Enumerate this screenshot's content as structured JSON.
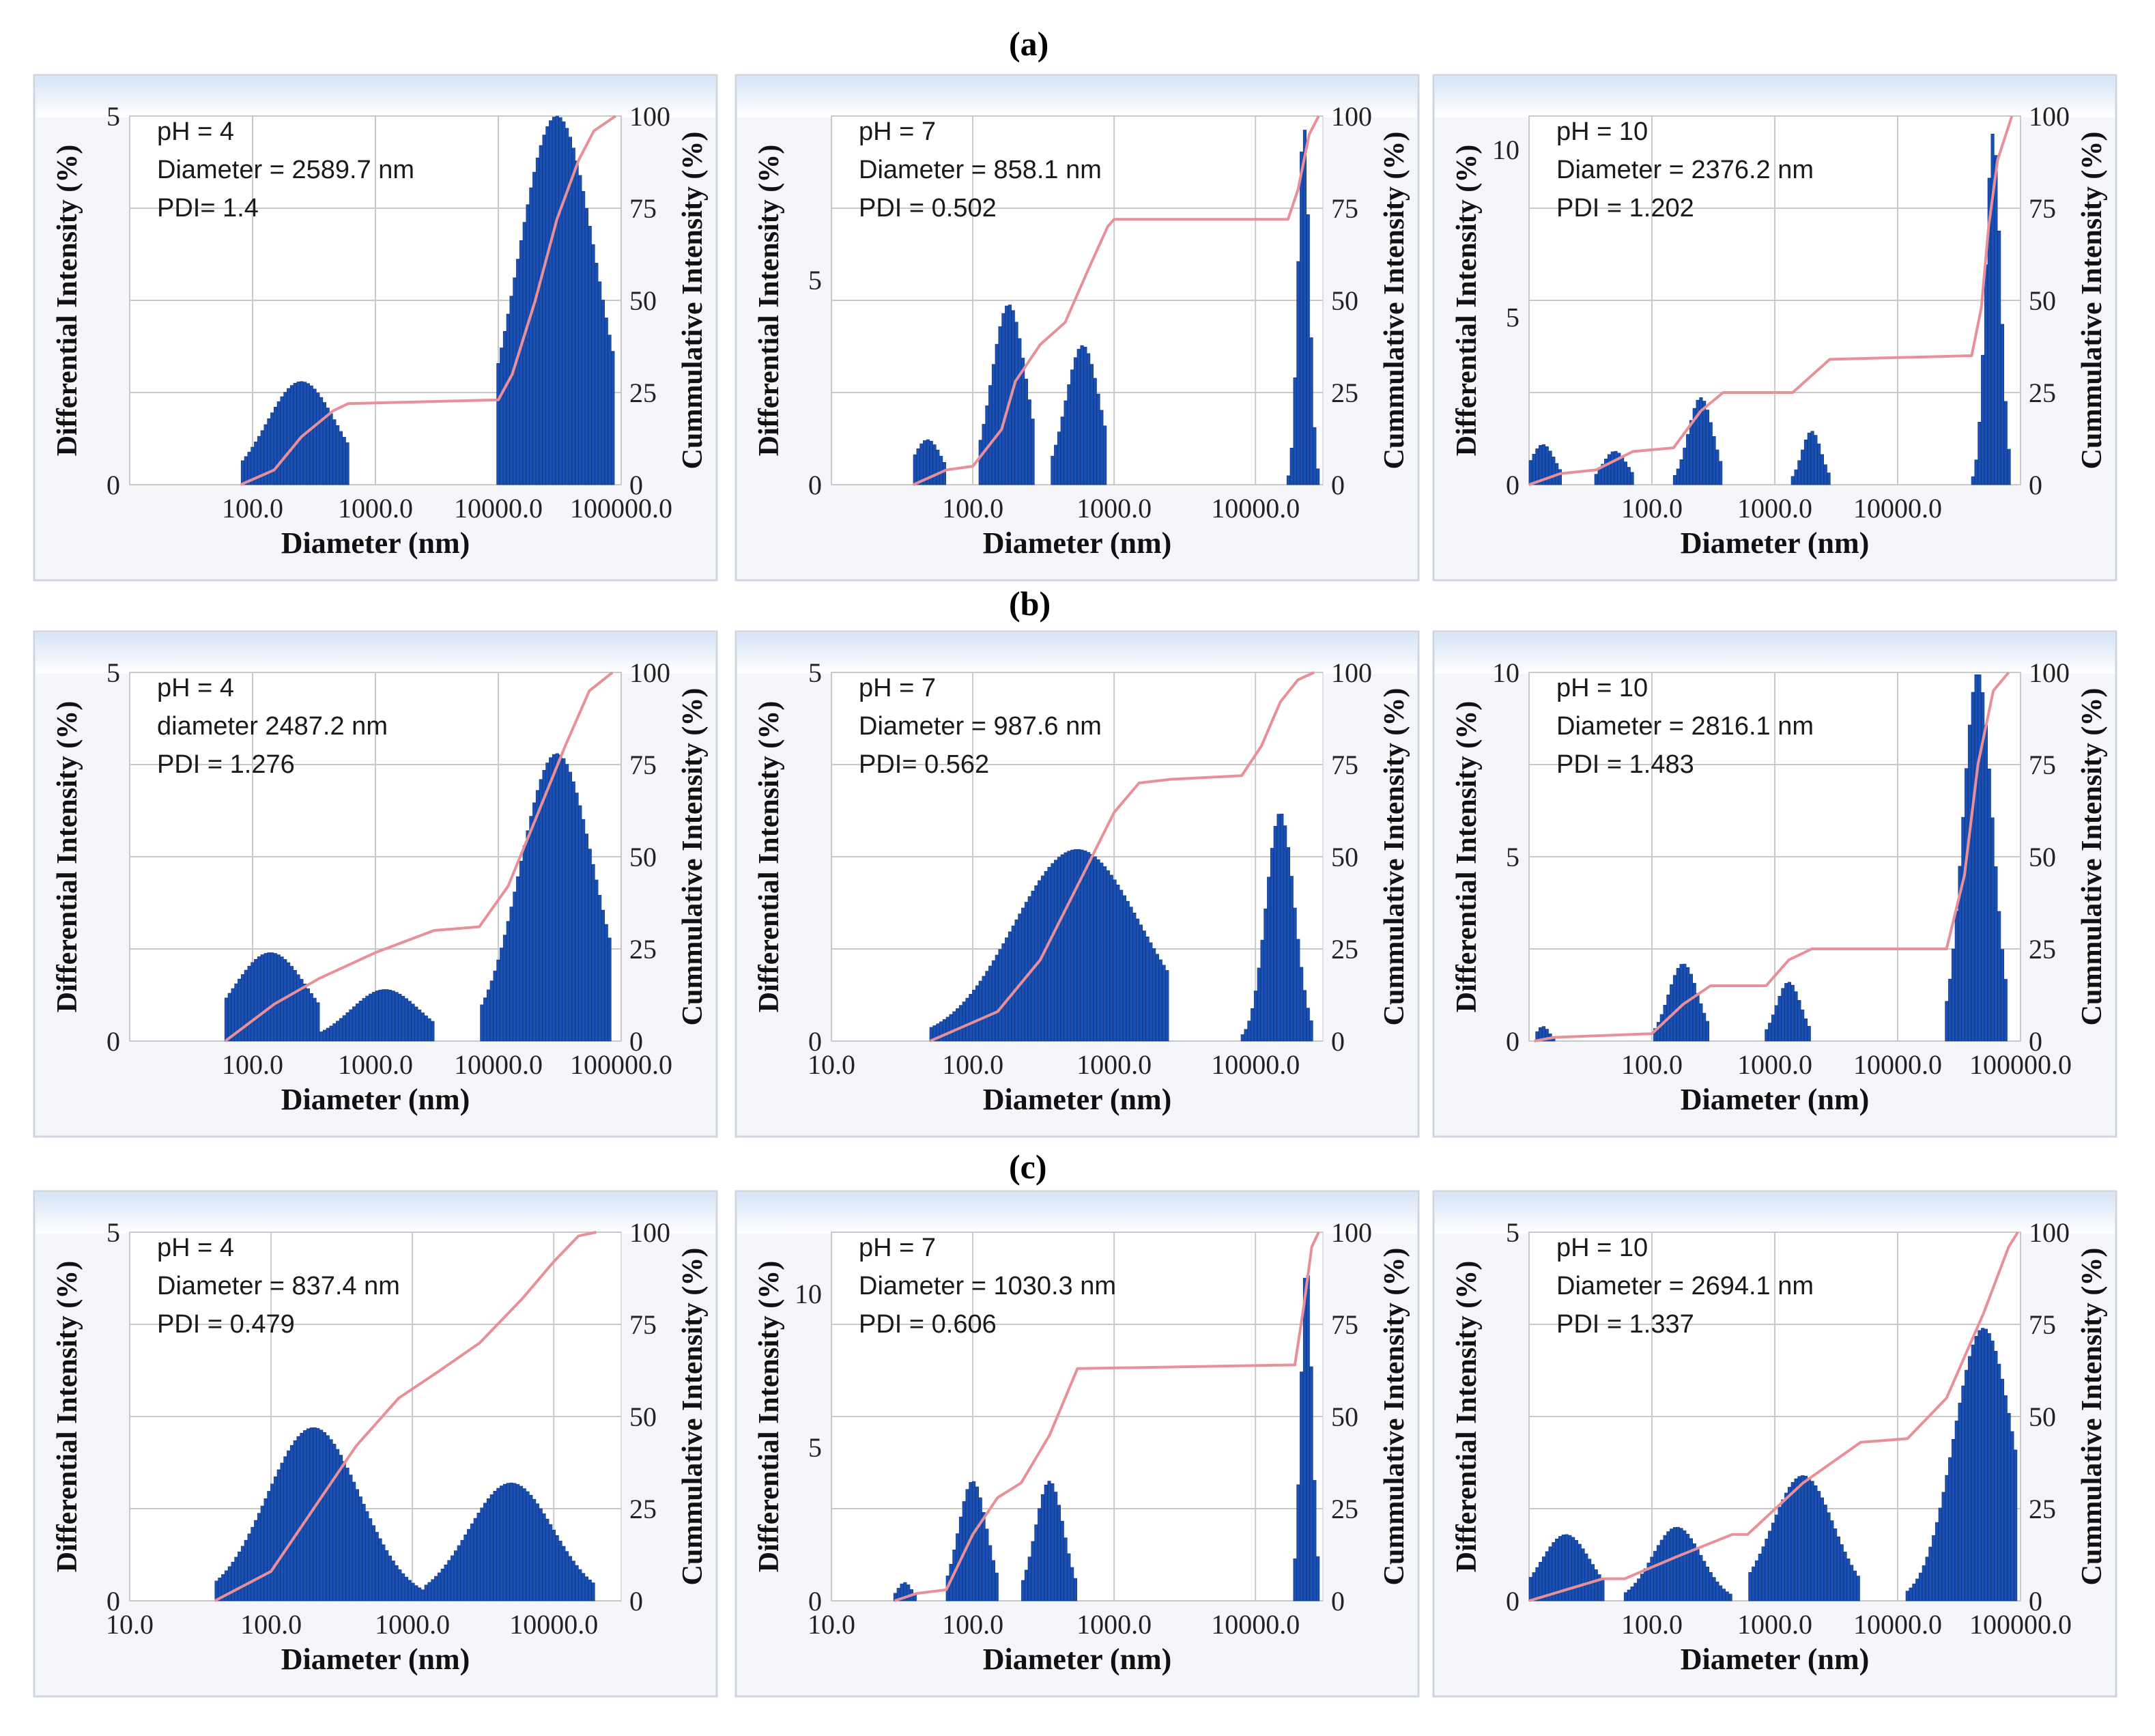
{
  "row_labels": [
    "(a)",
    "(b)",
    "(c)"
  ],
  "axis_titles": {
    "x": "Diameter (nm)",
    "y_left": "Differential Intensity (%)",
    "y_right": "Cummulative Intensity (%)"
  },
  "colors": {
    "bars": "#1a4fb4",
    "bar_edge": "#0e347f",
    "cumulative_line": "#e8909a",
    "panel_header": "#d6e4f7",
    "plot_background": "#ffffff",
    "grid": "#c9c9c9"
  },
  "chart_data": [
    {
      "id": "a-ph4",
      "type": "bar",
      "row": "(a)",
      "annotation": [
        "pH = 4",
        "Diameter = 2589.7 nm",
        "PDI= 1.4"
      ],
      "x_scale": "log",
      "xlim": [
        10,
        100000
      ],
      "x_ticks": [
        "100.0",
        "1000.0",
        "10000.0",
        "100000.0"
      ],
      "ylim": [
        0,
        5
      ],
      "y_ticks": [
        "0",
        "5"
      ],
      "y2lim": [
        0,
        100
      ],
      "y2_ticks": [
        "0",
        "25",
        "50",
        "75",
        "100"
      ],
      "peaks": [
        {
          "center": 250,
          "height": 1.4,
          "width": 0.28,
          "lo": 80,
          "hi": 600
        },
        {
          "center": 30000,
          "height": 5.0,
          "width": 0.32,
          "lo": 10000,
          "hi": 90000
        }
      ],
      "cumulative": [
        [
          80,
          0
        ],
        [
          150,
          4
        ],
        [
          250,
          13
        ],
        [
          450,
          20
        ],
        [
          600,
          22
        ],
        [
          10000,
          23
        ],
        [
          13000,
          30
        ],
        [
          20000,
          50
        ],
        [
          30000,
          72
        ],
        [
          45000,
          88
        ],
        [
          60000,
          96
        ],
        [
          90000,
          100
        ]
      ]
    },
    {
      "id": "a-ph7",
      "type": "bar",
      "row": "(a)",
      "annotation": [
        "pH = 7",
        "Diameter = 858.1 nm",
        "PDI = 0.502"
      ],
      "x_scale": "log",
      "xlim": [
        10,
        30000
      ],
      "x_ticks": [
        "100.0",
        "1000.0",
        "10000.0"
      ],
      "ylim": [
        0,
        9
      ],
      "y_ticks": [
        "0",
        "5"
      ],
      "y2lim": [
        0,
        100
      ],
      "y2_ticks": [
        "0",
        "25",
        "50",
        "75",
        "100"
      ],
      "peaks": [
        {
          "center": 48,
          "height": 1.1,
          "width": 0.1,
          "lo": 38,
          "hi": 65
        },
        {
          "center": 180,
          "height": 4.4,
          "width": 0.12,
          "lo": 110,
          "hi": 280
        },
        {
          "center": 600,
          "height": 3.4,
          "width": 0.12,
          "lo": 350,
          "hi": 900
        },
        {
          "center": 22000,
          "height": 8.8,
          "width": 0.04,
          "lo": 17000,
          "hi": 28000
        }
      ],
      "cumulative": [
        [
          38,
          0
        ],
        [
          65,
          4
        ],
        [
          100,
          5
        ],
        [
          160,
          15
        ],
        [
          200,
          28
        ],
        [
          300,
          38
        ],
        [
          450,
          44
        ],
        [
          650,
          58
        ],
        [
          900,
          70
        ],
        [
          1000,
          72
        ],
        [
          17000,
          72
        ],
        [
          20000,
          80
        ],
        [
          24000,
          95
        ],
        [
          28000,
          100
        ]
      ]
    },
    {
      "id": "a-ph10",
      "type": "bar",
      "row": "(a)",
      "annotation": [
        "pH = 10",
        "Diameter = 2376.2 nm",
        "PDI = 1.202"
      ],
      "x_scale": "log",
      "xlim": [
        10,
        100000
      ],
      "x_ticks": [
        "100.0",
        "1000.0",
        "10000.0"
      ],
      "ylim": [
        0,
        11
      ],
      "y_ticks": [
        "0",
        "5",
        "10"
      ],
      "y2lim": [
        0,
        100
      ],
      "y2_ticks": [
        "0",
        "25",
        "50",
        "75",
        "100"
      ],
      "peaks": [
        {
          "center": 13,
          "height": 1.2,
          "width": 0.1,
          "lo": 10,
          "hi": 18
        },
        {
          "center": 50,
          "height": 1.0,
          "width": 0.1,
          "lo": 35,
          "hi": 70
        },
        {
          "center": 250,
          "height": 2.6,
          "width": 0.1,
          "lo": 150,
          "hi": 380
        },
        {
          "center": 2000,
          "height": 1.6,
          "width": 0.08,
          "lo": 1400,
          "hi": 2800
        },
        {
          "center": 60000,
          "height": 10.5,
          "width": 0.06,
          "lo": 40000,
          "hi": 85000
        }
      ],
      "cumulative": [
        [
          10,
          0
        ],
        [
          18,
          3
        ],
        [
          35,
          4
        ],
        [
          70,
          9
        ],
        [
          150,
          10
        ],
        [
          250,
          20
        ],
        [
          380,
          25
        ],
        [
          1400,
          25
        ],
        [
          2800,
          34
        ],
        [
          40000,
          35
        ],
        [
          48000,
          48
        ],
        [
          55000,
          70
        ],
        [
          65000,
          88
        ],
        [
          85000,
          100
        ]
      ]
    },
    {
      "id": "b-ph4",
      "type": "bar",
      "row": "(b)",
      "annotation": [
        "pH = 4",
        "diameter 2487.2 nm",
        "PDI = 1.276"
      ],
      "x_scale": "log",
      "xlim": [
        10,
        100000
      ],
      "x_ticks": [
        "100.0",
        "1000.0",
        "10000.0",
        "100000.0"
      ],
      "ylim": [
        0,
        5
      ],
      "y_ticks": [
        "0",
        "5"
      ],
      "y2lim": [
        0,
        100
      ],
      "y2_ticks": [
        "0",
        "25",
        "50",
        "75",
        "100"
      ],
      "peaks": [
        {
          "center": 140,
          "height": 1.2,
          "width": 0.3,
          "lo": 60,
          "hi": 350
        },
        {
          "center": 1200,
          "height": 0.7,
          "width": 0.28,
          "lo": 350,
          "hi": 3000
        },
        {
          "center": 30000,
          "height": 3.9,
          "width": 0.3,
          "lo": 7000,
          "hi": 85000
        }
      ],
      "cumulative": [
        [
          60,
          0
        ],
        [
          150,
          10
        ],
        [
          350,
          17
        ],
        [
          1000,
          24
        ],
        [
          3000,
          30
        ],
        [
          7000,
          31
        ],
        [
          12000,
          42
        ],
        [
          20000,
          60
        ],
        [
          35000,
          80
        ],
        [
          55000,
          95
        ],
        [
          85000,
          100
        ]
      ]
    },
    {
      "id": "b-ph7",
      "type": "bar",
      "row": "(b)",
      "annotation": [
        "pH = 7",
        "Diameter = 987.6 nm",
        "PDI= 0.562"
      ],
      "x_scale": "log",
      "xlim": [
        10,
        30000
      ],
      "x_ticks": [
        "10.0",
        "100.0",
        "1000.0",
        "10000.0"
      ],
      "ylim": [
        0,
        5
      ],
      "y_ticks": [
        "0",
        "5"
      ],
      "y2lim": [
        0,
        100
      ],
      "y2_ticks": [
        "0",
        "25",
        "50",
        "75",
        "100"
      ],
      "peaks": [
        {
          "center": 550,
          "height": 2.6,
          "width": 0.45,
          "lo": 50,
          "hi": 2500
        },
        {
          "center": 15000,
          "height": 3.1,
          "width": 0.1,
          "lo": 8000,
          "hi": 26000
        }
      ],
      "cumulative": [
        [
          50,
          0
        ],
        [
          150,
          8
        ],
        [
          300,
          22
        ],
        [
          600,
          45
        ],
        [
          1000,
          62
        ],
        [
          1500,
          70
        ],
        [
          2500,
          71
        ],
        [
          8000,
          72
        ],
        [
          11000,
          80
        ],
        [
          15000,
          92
        ],
        [
          20000,
          98
        ],
        [
          26000,
          100
        ]
      ]
    },
    {
      "id": "b-ph10",
      "type": "bar",
      "row": "(b)",
      "annotation": [
        "pH = 10",
        "Diameter = 2816.1 nm",
        "PDI = 1.483"
      ],
      "x_scale": "log",
      "xlim": [
        10,
        100000
      ],
      "x_ticks": [
        "100.0",
        "1000.0",
        "10000.0",
        "100000.0"
      ],
      "ylim": [
        0,
        10
      ],
      "y_ticks": [
        "0",
        "5",
        "10"
      ],
      "y2lim": [
        0,
        100
      ],
      "y2_ticks": [
        "0",
        "25",
        "50",
        "75",
        "100"
      ],
      "peaks": [
        {
          "center": 13,
          "height": 0.4,
          "width": 0.05,
          "lo": 11,
          "hi": 16
        },
        {
          "center": 180,
          "height": 2.1,
          "width": 0.12,
          "lo": 100,
          "hi": 300
        },
        {
          "center": 1300,
          "height": 1.6,
          "width": 0.1,
          "lo": 850,
          "hi": 2000
        },
        {
          "center": 45000,
          "height": 10.0,
          "width": 0.12,
          "lo": 25000,
          "hi": 80000
        }
      ],
      "cumulative": [
        [
          11,
          0
        ],
        [
          16,
          1
        ],
        [
          100,
          2
        ],
        [
          180,
          10
        ],
        [
          300,
          15
        ],
        [
          850,
          15
        ],
        [
          1300,
          22
        ],
        [
          2000,
          25
        ],
        [
          25000,
          25
        ],
        [
          35000,
          45
        ],
        [
          45000,
          75
        ],
        [
          60000,
          95
        ],
        [
          80000,
          100
        ]
      ]
    },
    {
      "id": "c-ph4",
      "type": "bar",
      "row": "(c)",
      "annotation": [
        "pH = 4",
        "Diameter = 837.4 nm",
        "PDI = 0.479"
      ],
      "x_scale": "log",
      "xlim": [
        10,
        30000
      ],
      "x_ticks": [
        "10.0",
        "100.0",
        "1000.0",
        "10000.0"
      ],
      "ylim": [
        0,
        5
      ],
      "y_ticks": [
        "0",
        "5"
      ],
      "y2lim": [
        0,
        100
      ],
      "y2_ticks": [
        "0",
        "25",
        "50",
        "75",
        "100"
      ],
      "peaks": [
        {
          "center": 200,
          "height": 2.35,
          "width": 0.33,
          "lo": 40,
          "hi": 1200
        },
        {
          "center": 5000,
          "height": 1.6,
          "width": 0.3,
          "lo": 1200,
          "hi": 20000
        }
      ],
      "cumulative": [
        [
          40,
          0
        ],
        [
          100,
          8
        ],
        [
          200,
          25
        ],
        [
          400,
          42
        ],
        [
          800,
          55
        ],
        [
          1500,
          62
        ],
        [
          3000,
          70
        ],
        [
          6000,
          82
        ],
        [
          10000,
          92
        ],
        [
          15000,
          99
        ],
        [
          20000,
          100
        ]
      ]
    },
    {
      "id": "c-ph7",
      "type": "bar",
      "row": "(c)",
      "annotation": [
        "pH = 7",
        "Diameter = 1030.3 nm",
        "PDI = 0.606"
      ],
      "x_scale": "log",
      "xlim": [
        10,
        30000
      ],
      "x_ticks": [
        "10.0",
        "100.0",
        "1000.0",
        "10000.0"
      ],
      "ylim": [
        0,
        12
      ],
      "y_ticks": [
        "0",
        "5",
        "10"
      ],
      "y2lim": [
        0,
        100
      ],
      "y2_ticks": [
        "0",
        "25",
        "50",
        "75",
        "100"
      ],
      "peaks": [
        {
          "center": 33,
          "height": 0.6,
          "width": 0.05,
          "lo": 28,
          "hi": 40
        },
        {
          "center": 100,
          "height": 3.9,
          "width": 0.1,
          "lo": 65,
          "hi": 150
        },
        {
          "center": 350,
          "height": 3.9,
          "width": 0.1,
          "lo": 220,
          "hi": 550
        },
        {
          "center": 23000,
          "height": 11.0,
          "width": 0.04,
          "lo": 19000,
          "hi": 28000
        }
      ],
      "cumulative": [
        [
          28,
          0
        ],
        [
          40,
          2
        ],
        [
          65,
          3
        ],
        [
          100,
          18
        ],
        [
          150,
          28
        ],
        [
          220,
          32
        ],
        [
          350,
          45
        ],
        [
          550,
          63
        ],
        [
          19000,
          64
        ],
        [
          22000,
          80
        ],
        [
          25000,
          96
        ],
        [
          28000,
          100
        ]
      ]
    },
    {
      "id": "c-ph10",
      "type": "bar",
      "row": "(c)",
      "annotation": [
        "pH = 10",
        "Diameter = 2694.1 nm",
        "PDI = 1.337"
      ],
      "x_scale": "log",
      "xlim": [
        10,
        100000
      ],
      "x_ticks": [
        "100.0",
        "1000.0",
        "10000.0",
        "100000.0"
      ],
      "ylim": [
        0,
        5
      ],
      "y_ticks": [
        "0",
        "5"
      ],
      "y2lim": [
        0,
        100
      ],
      "y2_ticks": [
        "0",
        "25",
        "50",
        "75",
        "100"
      ],
      "peaks": [
        {
          "center": 20,
          "height": 0.9,
          "width": 0.2,
          "lo": 10,
          "hi": 40
        },
        {
          "center": 160,
          "height": 1.0,
          "width": 0.2,
          "lo": 60,
          "hi": 450
        },
        {
          "center": 1700,
          "height": 1.7,
          "width": 0.25,
          "lo": 600,
          "hi": 5000
        },
        {
          "center": 50000,
          "height": 3.7,
          "width": 0.24,
          "lo": 12000,
          "hi": 95000
        }
      ],
      "cumulative": [
        [
          10,
          0
        ],
        [
          40,
          6
        ],
        [
          60,
          6
        ],
        [
          160,
          12
        ],
        [
          450,
          18
        ],
        [
          600,
          18
        ],
        [
          1700,
          32
        ],
        [
          5000,
          43
        ],
        [
          12000,
          44
        ],
        [
          25000,
          55
        ],
        [
          50000,
          78
        ],
        [
          80000,
          96
        ],
        [
          95000,
          100
        ]
      ]
    }
  ]
}
